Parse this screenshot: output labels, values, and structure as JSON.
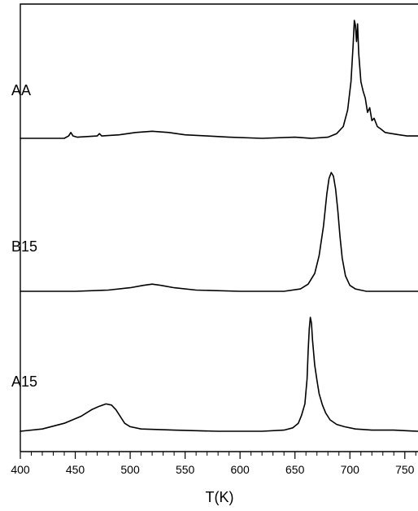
{
  "chart_data": {
    "type": "line",
    "title": "",
    "xlabel": "T(K)",
    "ylabel": "",
    "xlim": [
      400,
      762
    ],
    "x_major_ticks": [
      400,
      450,
      500,
      550,
      600,
      650,
      700,
      750
    ],
    "x_minor_step": 10,
    "y_ticks_shown": false,
    "grid": false,
    "legend": "none",
    "line_color": "#000000",
    "series": [
      {
        "name": "AA",
        "points": [
          [
            400,
            0.0
          ],
          [
            420,
            0.0
          ],
          [
            440,
            0.0
          ],
          [
            444,
            0.02
          ],
          [
            446,
            0.05
          ],
          [
            448,
            0.02
          ],
          [
            452,
            0.01
          ],
          [
            470,
            0.02
          ],
          [
            472,
            0.04
          ],
          [
            474,
            0.02
          ],
          [
            490,
            0.03
          ],
          [
            505,
            0.05
          ],
          [
            520,
            0.06
          ],
          [
            535,
            0.05
          ],
          [
            550,
            0.03
          ],
          [
            570,
            0.02
          ],
          [
            590,
            0.01
          ],
          [
            620,
            0.0
          ],
          [
            650,
            0.01
          ],
          [
            665,
            0.0
          ],
          [
            680,
            0.01
          ],
          [
            688,
            0.04
          ],
          [
            694,
            0.1
          ],
          [
            698,
            0.24
          ],
          [
            701,
            0.48
          ],
          [
            703,
            0.8
          ],
          [
            704,
            1.0
          ],
          [
            705,
            0.96
          ],
          [
            706,
            0.82
          ],
          [
            707,
            0.97
          ],
          [
            708,
            0.72
          ],
          [
            710,
            0.48
          ],
          [
            712,
            0.4
          ],
          [
            714,
            0.34
          ],
          [
            716,
            0.22
          ],
          [
            718,
            0.26
          ],
          [
            720,
            0.15
          ],
          [
            722,
            0.17
          ],
          [
            725,
            0.1
          ],
          [
            728,
            0.08
          ],
          [
            732,
            0.05
          ],
          [
            738,
            0.04
          ],
          [
            745,
            0.03
          ],
          [
            752,
            0.02
          ],
          [
            762,
            0.02
          ]
        ]
      },
      {
        "name": "B15",
        "points": [
          [
            400,
            0.0
          ],
          [
            450,
            0.0
          ],
          [
            480,
            0.01
          ],
          [
            500,
            0.03
          ],
          [
            512,
            0.05
          ],
          [
            520,
            0.06
          ],
          [
            528,
            0.05
          ],
          [
            540,
            0.03
          ],
          [
            560,
            0.01
          ],
          [
            600,
            0.0
          ],
          [
            640,
            0.0
          ],
          [
            655,
            0.02
          ],
          [
            662,
            0.06
          ],
          [
            668,
            0.15
          ],
          [
            672,
            0.3
          ],
          [
            676,
            0.55
          ],
          [
            679,
            0.82
          ],
          [
            681,
            0.95
          ],
          [
            683,
            1.0
          ],
          [
            685,
            0.97
          ],
          [
            687,
            0.86
          ],
          [
            689,
            0.68
          ],
          [
            691,
            0.46
          ],
          [
            693,
            0.28
          ],
          [
            696,
            0.13
          ],
          [
            700,
            0.05
          ],
          [
            705,
            0.02
          ],
          [
            715,
            0.0
          ],
          [
            762,
            0.0
          ]
        ]
      },
      {
        "name": "A15",
        "points": [
          [
            400,
            0.0
          ],
          [
            420,
            0.02
          ],
          [
            440,
            0.07
          ],
          [
            455,
            0.13
          ],
          [
            465,
            0.19
          ],
          [
            472,
            0.22
          ],
          [
            478,
            0.24
          ],
          [
            483,
            0.23
          ],
          [
            487,
            0.19
          ],
          [
            491,
            0.13
          ],
          [
            495,
            0.07
          ],
          [
            500,
            0.04
          ],
          [
            510,
            0.02
          ],
          [
            540,
            0.01
          ],
          [
            580,
            0.0
          ],
          [
            620,
            0.0
          ],
          [
            640,
            0.01
          ],
          [
            648,
            0.03
          ],
          [
            653,
            0.07
          ],
          [
            656,
            0.14
          ],
          [
            659,
            0.24
          ],
          [
            661,
            0.46
          ],
          [
            662,
            0.7
          ],
          [
            663,
            0.9
          ],
          [
            664,
            1.0
          ],
          [
            665,
            0.95
          ],
          [
            666,
            0.8
          ],
          [
            668,
            0.58
          ],
          [
            670,
            0.45
          ],
          [
            672,
            0.33
          ],
          [
            675,
            0.23
          ],
          [
            678,
            0.16
          ],
          [
            682,
            0.1
          ],
          [
            688,
            0.06
          ],
          [
            695,
            0.04
          ],
          [
            705,
            0.02
          ],
          [
            720,
            0.01
          ],
          [
            740,
            0.01
          ],
          [
            762,
            0.0
          ]
        ]
      }
    ]
  }
}
